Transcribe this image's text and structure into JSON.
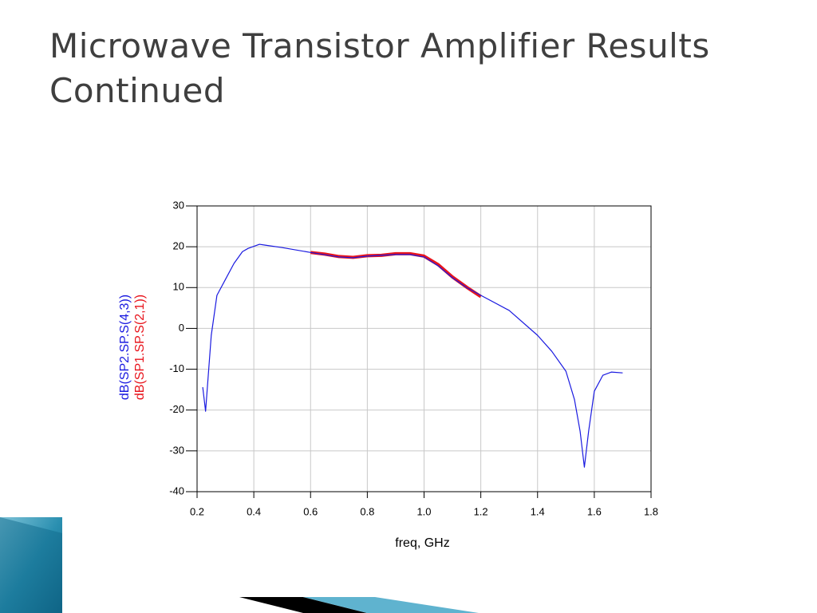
{
  "title": "Microwave Transistor Amplifier Results Continued",
  "chart_data": {
    "type": "line",
    "xlabel": "freq, GHz",
    "xlim": [
      0.2,
      1.8
    ],
    "xticks": [
      0.2,
      0.4,
      0.6,
      0.8,
      {
        "value": 1,
        "label": "1.0"
      },
      1.2,
      1.4,
      1.6,
      1.8
    ],
    "ylim": [
      -40,
      30
    ],
    "yticks": [
      -40,
      -30,
      -20,
      -10,
      0,
      10,
      20,
      30
    ],
    "grid": true,
    "series": [
      {
        "name": "dB(SP1.SP.S(2,1))",
        "color": "#e8141c",
        "x": [
          0.6,
          0.65,
          0.7,
          0.75,
          0.8,
          0.85,
          0.9,
          0.95,
          1.0,
          1.05,
          1.1,
          1.15,
          1.2
        ],
        "values": [
          18.6,
          18.2,
          17.6,
          17.4,
          17.8,
          17.9,
          18.3,
          18.3,
          17.7,
          15.6,
          12.6,
          10.1,
          7.8
        ]
      },
      {
        "name": "dB(SP2.SP.S(4,3))",
        "color": "#1a1ae0",
        "x": [
          0.22,
          0.23,
          0.25,
          0.27,
          0.3,
          0.33,
          0.36,
          0.38,
          0.42,
          0.44,
          0.5,
          0.6,
          0.7,
          0.75,
          0.8,
          0.9,
          0.95,
          1.0,
          1.05,
          1.1,
          1.15,
          1.2,
          1.3,
          1.4,
          1.45,
          1.5,
          1.53,
          1.55,
          1.565,
          1.58,
          1.6,
          1.63,
          1.66,
          1.7
        ],
        "values": [
          -14.4,
          -20.3,
          -1.7,
          8.1,
          12,
          15.9,
          18.8,
          19.6,
          20.6,
          20.4,
          19.8,
          18.6,
          17.5,
          17.3,
          17.7,
          18.1,
          18.1,
          17.5,
          15.3,
          12.4,
          10,
          8.1,
          4.4,
          -1.7,
          -5.6,
          -10.5,
          -17.4,
          -25.2,
          -34,
          -25.2,
          -15.4,
          -11.5,
          -10.7,
          -10.9
        ]
      }
    ]
  }
}
